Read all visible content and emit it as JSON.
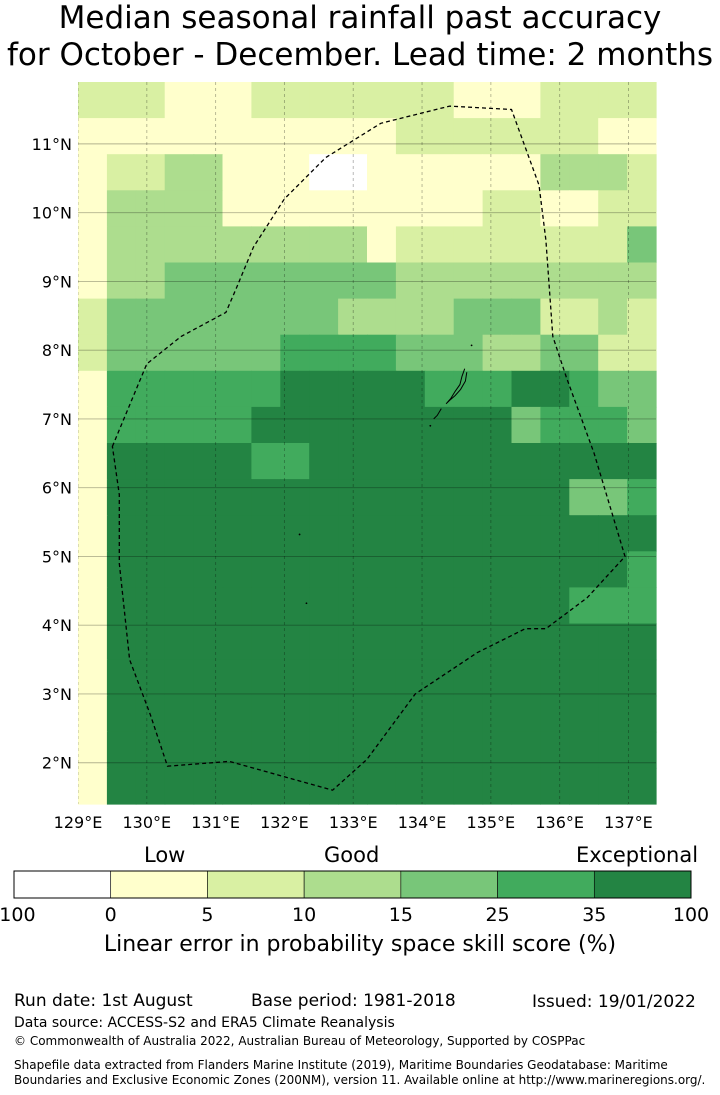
{
  "title": {
    "line1": "Median seasonal rainfall past accuracy",
    "line2": "for October - December. Lead time: 2 months"
  },
  "map": {
    "lon_range": [
      129,
      137
    ],
    "lat_range": [
      1.4,
      11.9
    ],
    "lon_ticks": [
      "129°E",
      "130°E",
      "131°E",
      "132°E",
      "133°E",
      "134°E",
      "135°E",
      "136°E",
      "137°E"
    ],
    "lat_ticks": [
      "2°N",
      "3°N",
      "4°N",
      "5°N",
      "6°N",
      "7°N",
      "8°N",
      "9°N",
      "10°N",
      "11°N"
    ],
    "grid_lines": true,
    "eez_boundary_style": "dashed",
    "class_colors": [
      "#ffffff",
      "#ffffcc",
      "#d9f0a3",
      "#addd8e",
      "#78c679",
      "#41ab5d",
      "#238443"
    ],
    "cells_note": "class index per grid cell, rows from north to south",
    "cells": [
      [
        2,
        2,
        2,
        1,
        1,
        1,
        2,
        2,
        2,
        2,
        2,
        2,
        2,
        1,
        1,
        1,
        2,
        2,
        2,
        2
      ],
      [
        1,
        1,
        1,
        1,
        1,
        1,
        1,
        1,
        1,
        1,
        1,
        2,
        2,
        2,
        2,
        2,
        2,
        2,
        1,
        1
      ],
      [
        1,
        2,
        2,
        3,
        3,
        1,
        1,
        1,
        0,
        0,
        1,
        1,
        1,
        1,
        1,
        1,
        3,
        3,
        3,
        2
      ],
      [
        1,
        3,
        3,
        3,
        3,
        1,
        1,
        1,
        1,
        1,
        1,
        1,
        1,
        1,
        2,
        2,
        1,
        1,
        2,
        2
      ],
      [
        1,
        3,
        3,
        3,
        3,
        3,
        3,
        3,
        3,
        3,
        1,
        2,
        2,
        2,
        2,
        2,
        2,
        2,
        2,
        4
      ],
      [
        1,
        3,
        3,
        4,
        4,
        4,
        4,
        4,
        4,
        4,
        4,
        3,
        3,
        3,
        3,
        3,
        3,
        3,
        3,
        3
      ],
      [
        2,
        4,
        4,
        4,
        4,
        4,
        4,
        4,
        4,
        3,
        3,
        3,
        3,
        4,
        4,
        4,
        2,
        2,
        3,
        2
      ],
      [
        2,
        4,
        4,
        4,
        4,
        4,
        4,
        5,
        5,
        5,
        5,
        4,
        4,
        4,
        3,
        3,
        4,
        4,
        2,
        2
      ],
      [
        1,
        5,
        5,
        5,
        5,
        5,
        5,
        6,
        6,
        6,
        6,
        6,
        5,
        5,
        5,
        6,
        6,
        5,
        4,
        4
      ],
      [
        1,
        5,
        5,
        5,
        5,
        5,
        6,
        6,
        6,
        6,
        6,
        6,
        6,
        6,
        6,
        4,
        5,
        5,
        5,
        4
      ],
      [
        1,
        6,
        6,
        6,
        6,
        6,
        5,
        5,
        6,
        6,
        6,
        6,
        6,
        6,
        6,
        6,
        6,
        6,
        6,
        6
      ],
      [
        1,
        6,
        6,
        6,
        6,
        6,
        6,
        6,
        6,
        6,
        6,
        6,
        6,
        6,
        6,
        6,
        6,
        4,
        4,
        5
      ],
      [
        1,
        6,
        6,
        6,
        6,
        6,
        6,
        6,
        6,
        6,
        6,
        6,
        6,
        6,
        6,
        6,
        6,
        6,
        6,
        6
      ],
      [
        1,
        6,
        6,
        6,
        6,
        6,
        6,
        6,
        6,
        6,
        6,
        6,
        6,
        6,
        6,
        6,
        6,
        6,
        6,
        5
      ],
      [
        1,
        6,
        6,
        6,
        6,
        6,
        6,
        6,
        6,
        6,
        6,
        6,
        6,
        6,
        6,
        6,
        6,
        5,
        5,
        5
      ],
      [
        1,
        6,
        6,
        6,
        6,
        6,
        6,
        6,
        6,
        6,
        6,
        6,
        6,
        6,
        6,
        6,
        6,
        6,
        6,
        6
      ],
      [
        1,
        6,
        6,
        6,
        6,
        6,
        6,
        6,
        6,
        6,
        6,
        6,
        6,
        6,
        6,
        6,
        6,
        6,
        6,
        6
      ],
      [
        1,
        6,
        6,
        6,
        6,
        6,
        6,
        6,
        6,
        6,
        6,
        6,
        6,
        6,
        6,
        6,
        6,
        6,
        6,
        6
      ],
      [
        1,
        6,
        6,
        6,
        6,
        6,
        6,
        6,
        6,
        6,
        6,
        6,
        6,
        6,
        6,
        6,
        6,
        6,
        6,
        6
      ],
      [
        1,
        6,
        6,
        6,
        6,
        6,
        6,
        6,
        6,
        6,
        6,
        6,
        6,
        6,
        6,
        6,
        6,
        6,
        6,
        6
      ]
    ],
    "eez_boundary": [
      [
        129.5,
        6.6
      ],
      [
        130.0,
        7.8
      ],
      [
        130.5,
        8.2
      ],
      [
        131.15,
        8.55
      ],
      [
        131.3,
        8.9
      ],
      [
        131.55,
        9.5
      ],
      [
        132.0,
        10.2
      ],
      [
        132.6,
        10.8
      ],
      [
        133.4,
        11.3
      ],
      [
        134.4,
        11.55
      ],
      [
        135.3,
        11.5
      ],
      [
        135.7,
        10.4
      ],
      [
        135.8,
        9.6
      ],
      [
        135.9,
        8.2
      ],
      [
        136.1,
        7.6
      ],
      [
        136.5,
        6.5
      ],
      [
        136.95,
        5.0
      ],
      [
        136.4,
        4.4
      ],
      [
        135.8,
        3.95
      ],
      [
        135.5,
        3.95
      ],
      [
        134.8,
        3.6
      ],
      [
        133.9,
        3.0
      ],
      [
        133.2,
        2.05
      ],
      [
        132.7,
        1.6
      ],
      [
        131.2,
        2.02
      ],
      [
        130.3,
        1.95
      ],
      [
        130.05,
        2.7
      ],
      [
        129.75,
        3.5
      ],
      [
        129.6,
        4.9
      ],
      [
        129.6,
        5.9
      ]
    ],
    "islands": [
      [
        [
          134.62,
          7.73
        ],
        [
          134.58,
          7.62
        ],
        [
          134.55,
          7.5
        ],
        [
          134.48,
          7.4
        ],
        [
          134.42,
          7.3
        ],
        [
          134.35,
          7.22
        ],
        [
          134.4,
          7.27
        ],
        [
          134.48,
          7.34
        ],
        [
          134.56,
          7.43
        ],
        [
          134.63,
          7.55
        ],
        [
          134.65,
          7.68
        ]
      ],
      [
        [
          134.28,
          7.15
        ],
        [
          134.22,
          7.05
        ],
        [
          134.17,
          7.0
        ]
      ],
      [
        [
          134.12,
          6.9
        ]
      ],
      [
        [
          134.72,
          8.07
        ]
      ],
      [
        [
          132.22,
          5.32
        ]
      ],
      [
        [
          132.32,
          4.32
        ]
      ]
    ]
  },
  "colorbar": {
    "category_labels": [
      "Low",
      "Good",
      "Exceptional"
    ],
    "tick_labels": [
      "-100",
      "0",
      "5",
      "10",
      "15",
      "25",
      "35",
      "100"
    ],
    "colors": [
      "#ffffff",
      "#ffffcc",
      "#d9f0a3",
      "#addd8e",
      "#78c679",
      "#41ab5d",
      "#238443"
    ],
    "axis_title": "Linear error in probability space skill score (%)"
  },
  "footer": {
    "run_date": "Run date: 1st August",
    "base_period": "Base period: 1981-2018",
    "issued": "Issued: 19/01/2022",
    "data_source": "Data source: ACCESS-S2 and ERA5 Climate Reanalysis",
    "copyright": "© Commonwealth of Australia 2022, Australian Bureau of Meteorology, Supported by COSPPac",
    "shapefile_line1": "Shapefile data extracted from Flanders Marine Institute (2019), Maritime Boundaries Geodatabase: Maritime",
    "shapefile_line2": "Boundaries and Exclusive Economic Zones (200NM), version 11. Available online at http://www.marineregions.org/."
  }
}
